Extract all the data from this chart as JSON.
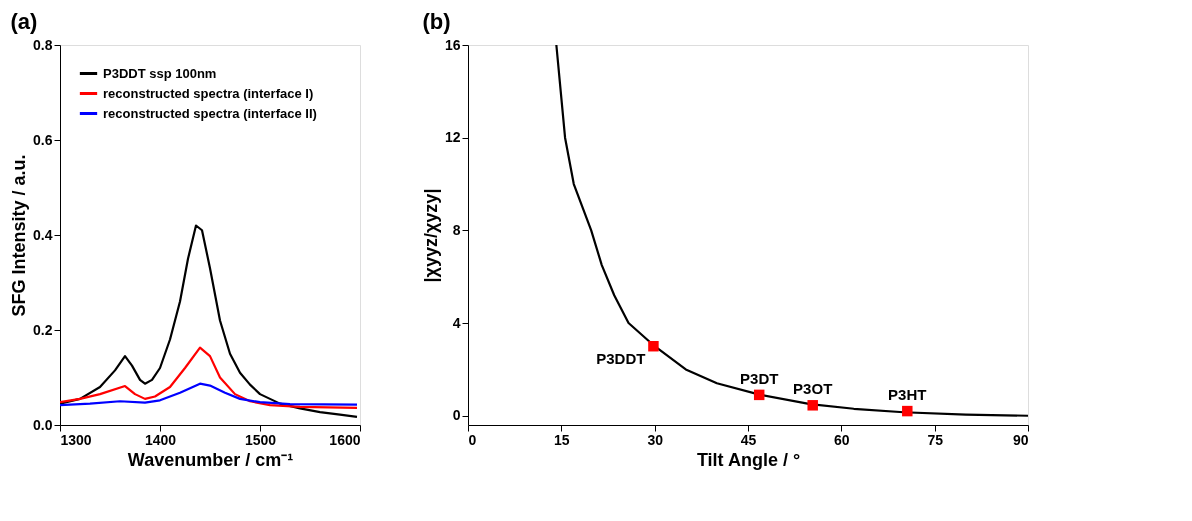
{
  "chart_data": [
    {
      "type": "line",
      "title": "(a)",
      "xlabel": "Wavenumber / cm⁻¹",
      "ylabel": "SFG Intensity / a.u.",
      "xlim": [
        1300,
        1600
      ],
      "xticks": [
        1300,
        1400,
        1500,
        1600
      ],
      "ylim": [
        0,
        0.8
      ],
      "yticks": [
        {
          "value": 0,
          "label": "0.0"
        },
        0.2,
        0.4,
        0.6,
        0.8
      ],
      "grid": false,
      "legend": "top left",
      "line_style": "solid",
      "marker": "none",
      "series": [
        {
          "name": "P3DDT ssp 100nm",
          "color": "#000000",
          "x": [
            1300,
            1320,
            1340,
            1355,
            1365,
            1372,
            1380,
            1385,
            1392,
            1400,
            1410,
            1420,
            1428,
            1436,
            1442,
            1450,
            1460,
            1470,
            1480,
            1490,
            1500,
            1520,
            1540,
            1560,
            1580,
            1597
          ],
          "values": [
            0.045,
            0.055,
            0.08,
            0.115,
            0.145,
            0.125,
            0.095,
            0.087,
            0.095,
            0.12,
            0.18,
            0.26,
            0.35,
            0.42,
            0.41,
            0.33,
            0.22,
            0.15,
            0.11,
            0.085,
            0.065,
            0.045,
            0.035,
            0.027,
            0.022,
            0.017
          ]
        },
        {
          "name": "reconstructed spectra (interface I)",
          "color": "#ff0000",
          "x": [
            1300,
            1320,
            1340,
            1365,
            1375,
            1385,
            1395,
            1410,
            1425,
            1440,
            1450,
            1460,
            1475,
            1490,
            1510,
            1540,
            1597
          ],
          "values": [
            0.048,
            0.055,
            0.065,
            0.082,
            0.065,
            0.055,
            0.06,
            0.08,
            0.12,
            0.163,
            0.145,
            0.1,
            0.065,
            0.05,
            0.042,
            0.038,
            0.036
          ]
        },
        {
          "name": "reconstructed spectra (interface II)",
          "color": "#0000ff",
          "x": [
            1300,
            1330,
            1360,
            1385,
            1400,
            1420,
            1440,
            1450,
            1465,
            1480,
            1500,
            1530,
            1597
          ],
          "values": [
            0.042,
            0.045,
            0.05,
            0.047,
            0.052,
            0.068,
            0.087,
            0.083,
            0.068,
            0.055,
            0.048,
            0.044,
            0.043
          ]
        }
      ]
    },
    {
      "type": "line",
      "title": "(b)",
      "xlabel": "Tilt Angle / °",
      "ylabel": "|χyyz/χyzy|",
      "xlim": [
        0,
        90
      ],
      "xticks": [
        0,
        15,
        30,
        45,
        60,
        75,
        90
      ],
      "ylim": [
        -0.4,
        16
      ],
      "yticks": [
        0,
        4,
        8,
        12,
        16
      ],
      "grid": false,
      "legend": false,
      "series": [
        {
          "type": "line",
          "color": "#000000",
          "x": [
            14.2,
            15.6,
            17,
            19.8,
            21.5,
            23.5,
            25.8,
            30,
            35,
            40,
            47,
            55,
            62,
            70,
            80,
            90
          ],
          "values": [
            16,
            12,
            10,
            8,
            6.5,
            5.2,
            4,
            3,
            2.0,
            1.4,
            0.9,
            0.5,
            0.3,
            0.15,
            0.05,
            0
          ]
        },
        {
          "type": "scatter",
          "color": "#ff0000",
          "marker": "square",
          "x": [
            29.8,
            46.8,
            55.4,
            70.6
          ],
          "values": [
            3.0,
            0.9,
            0.45,
            0.2
          ]
        }
      ],
      "annotations": [
        {
          "text": "P3DDT",
          "x": 29.8,
          "y": 3.0
        },
        {
          "text": "P3DT",
          "x": 46.8,
          "y": 0.9
        },
        {
          "text": "P3OT",
          "x": 55.4,
          "y": 0.45
        },
        {
          "text": "P3HT",
          "x": 70.6,
          "y": 0.2
        }
      ]
    }
  ]
}
